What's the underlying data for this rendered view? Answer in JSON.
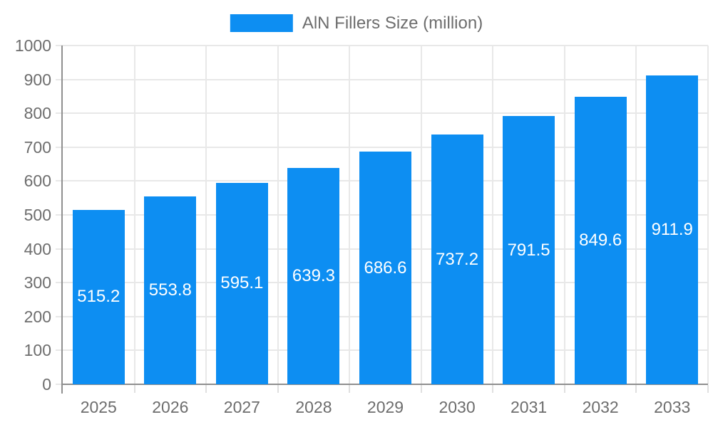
{
  "legend": {
    "label": "AlN Fillers Size (million)"
  },
  "colors": {
    "bar": "#0d8ef2",
    "value_label": "#ffffff",
    "axis_line": "#8f8f8f",
    "gridline": "#e8e8e8",
    "tick_text": "#6d6d6d"
  },
  "chart_data": {
    "type": "bar",
    "title": "",
    "xlabel": "",
    "ylabel": "",
    "legend": "AlN Fillers Size (million)",
    "legend_position": "top-center",
    "grid": true,
    "categories": [
      "2025",
      "2026",
      "2027",
      "2028",
      "2029",
      "2030",
      "2031",
      "2032",
      "2033"
    ],
    "values": [
      515.2,
      553.8,
      595.1,
      639.3,
      686.6,
      737.2,
      791.5,
      849.6,
      911.9
    ],
    "value_labels": [
      "515.2",
      "553.8",
      "595.1",
      "639.3",
      "686.6",
      "737.2",
      "791.5",
      "849.6",
      "911.9"
    ],
    "ylim": [
      0,
      1000
    ],
    "yticks": [
      0,
      100,
      200,
      300,
      400,
      500,
      600,
      700,
      800,
      900,
      1000
    ],
    "bar_color": "#0d8ef2"
  }
}
